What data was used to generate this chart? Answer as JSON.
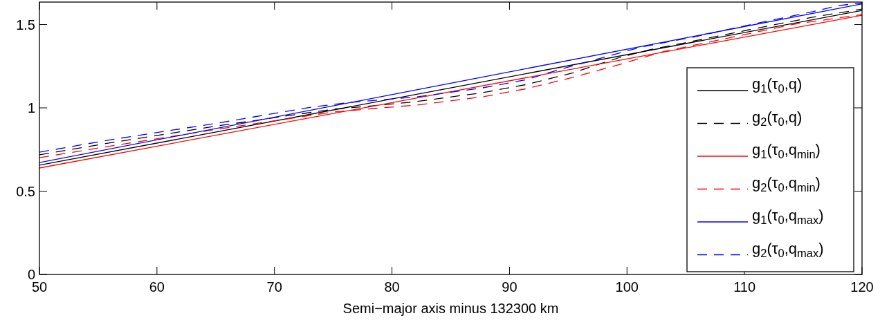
{
  "chart_data": {
    "type": "line",
    "xlabel": "Semi−major axis minus 132300 km",
    "xlim": [
      50,
      120
    ],
    "xticks": [
      50,
      60,
      70,
      80,
      90,
      100,
      110,
      120
    ],
    "ylim": [
      0,
      1.635
    ],
    "yticks": [
      0,
      0.5,
      1,
      1.5
    ],
    "legend": "right",
    "grid": false,
    "series": [
      {
        "name": "g$_{1}$(τ$_{0}$,q)",
        "color": "#000000",
        "line_style": "solid",
        "x": [
          50,
          85,
          120
        ],
        "values": [
          0.656,
          1.12,
          1.585
        ]
      },
      {
        "name": "g$_{2}$(τ$_{0}$,q)",
        "color": "#000000",
        "line_style": "dashed",
        "x": [
          50,
          56,
          65,
          75,
          78,
          82,
          87.7,
          91.5,
          95.4,
          97.5,
          99.4,
          102,
          104.9,
          110.4,
          115.8,
          120
        ],
        "values": [
          0.718,
          0.79,
          0.89,
          0.992,
          1.01,
          1.037,
          1.091,
          1.141,
          1.21,
          1.26,
          1.303,
          1.35,
          1.39,
          1.469,
          1.544,
          1.593
        ]
      },
      {
        "name": "g$_{1}$(τ$_{0}$,q$_{min}$)",
        "color": "#ff0000",
        "line_style": "solid",
        "x": [
          50,
          85,
          120
        ],
        "values": [
          0.639,
          1.097,
          1.556
        ]
      },
      {
        "name": "g$_{2}$(τ$_{0}$,q$_{min}$)",
        "color": "#ff0000",
        "line_style": "dashed",
        "x": [
          50,
          56,
          65,
          75,
          78.4,
          82.1,
          87.7,
          91.5,
          95.4,
          97.5,
          99.4,
          103,
          108.6,
          114.2,
          120
        ],
        "values": [
          0.701,
          0.77,
          0.87,
          0.975,
          0.996,
          1.017,
          1.066,
          1.116,
          1.183,
          1.224,
          1.261,
          1.336,
          1.419,
          1.502,
          1.56
        ]
      },
      {
        "name": "g$_{1}$(τ$_{0}$,q$_{max}$)",
        "color": "#0000ff",
        "line_style": "solid",
        "x": [
          50,
          85,
          120
        ],
        "values": [
          0.672,
          1.148,
          1.624
        ]
      },
      {
        "name": "g$_{2}$(τ$_{0}$,q$_{max}$)",
        "color": "#0000ff",
        "line_style": "dashed",
        "x": [
          50,
          56.1,
          65.3,
          73.1,
          76.5,
          82.1,
          87.7,
          91.5,
          93.3,
          95.4,
          97.6,
          101.2,
          106,
          110.4,
          115.8,
          118,
          120
        ],
        "values": [
          0.734,
          0.809,
          0.91,
          1.004,
          1.033,
          1.066,
          1.12,
          1.17,
          1.21,
          1.253,
          1.295,
          1.365,
          1.43,
          1.498,
          1.577,
          1.614,
          1.63
        ]
      }
    ]
  }
}
